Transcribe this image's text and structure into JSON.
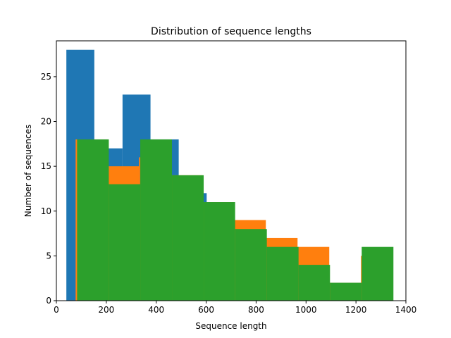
{
  "chart_data": {
    "type": "bar",
    "title": "Distribution of sequence lengths",
    "xlabel": "Sequence length",
    "ylabel": "Number of sequences",
    "xlim": [
      0,
      1400
    ],
    "ylim": [
      0,
      29
    ],
    "xticks": [
      0,
      200,
      400,
      600,
      800,
      1000,
      1200,
      1400
    ],
    "yticks": [
      0,
      5,
      10,
      15,
      20,
      25
    ],
    "grid": false,
    "series": [
      {
        "color": "#1f77b4",
        "bins": [
          {
            "x0": 40,
            "x1": 152,
            "value": 28
          },
          {
            "x0": 152,
            "x1": 265,
            "value": 17
          },
          {
            "x0": 265,
            "x1": 377,
            "value": 23
          },
          {
            "x0": 377,
            "x1": 490,
            "value": 18
          },
          {
            "x0": 490,
            "x1": 602,
            "value": 12
          },
          {
            "x0": 602,
            "x1": 715,
            "value": 11
          },
          {
            "x0": 715,
            "x1": 827,
            "value": 8
          },
          {
            "x0": 827,
            "x1": 940,
            "value": 6
          },
          {
            "x0": 940,
            "x1": 1052,
            "value": 4
          },
          {
            "x0": 1052,
            "x1": 1165,
            "value": 2
          }
        ]
      },
      {
        "color": "#ff7f0e",
        "bins": [
          {
            "x0": 77,
            "x1": 204,
            "value": 18
          },
          {
            "x0": 204,
            "x1": 331,
            "value": 15
          },
          {
            "x0": 331,
            "x1": 458,
            "value": 16
          },
          {
            "x0": 458,
            "x1": 585,
            "value": 14
          },
          {
            "x0": 585,
            "x1": 712,
            "value": 11
          },
          {
            "x0": 712,
            "x1": 839,
            "value": 9
          },
          {
            "x0": 839,
            "x1": 966,
            "value": 7
          },
          {
            "x0": 966,
            "x1": 1093,
            "value": 6
          },
          {
            "x0": 1093,
            "x1": 1220,
            "value": 2
          },
          {
            "x0": 1220,
            "x1": 1347,
            "value": 5
          }
        ]
      },
      {
        "color": "#2ca02c",
        "bins": [
          {
            "x0": 83,
            "x1": 210,
            "value": 18
          },
          {
            "x0": 210,
            "x1": 336,
            "value": 13
          },
          {
            "x0": 336,
            "x1": 463,
            "value": 18
          },
          {
            "x0": 463,
            "x1": 590,
            "value": 14
          },
          {
            "x0": 590,
            "x1": 716,
            "value": 11
          },
          {
            "x0": 716,
            "x1": 843,
            "value": 8
          },
          {
            "x0": 843,
            "x1": 970,
            "value": 6
          },
          {
            "x0": 970,
            "x1": 1096,
            "value": 4
          },
          {
            "x0": 1096,
            "x1": 1223,
            "value": 2
          },
          {
            "x0": 1223,
            "x1": 1350,
            "value": 6
          }
        ]
      }
    ]
  }
}
